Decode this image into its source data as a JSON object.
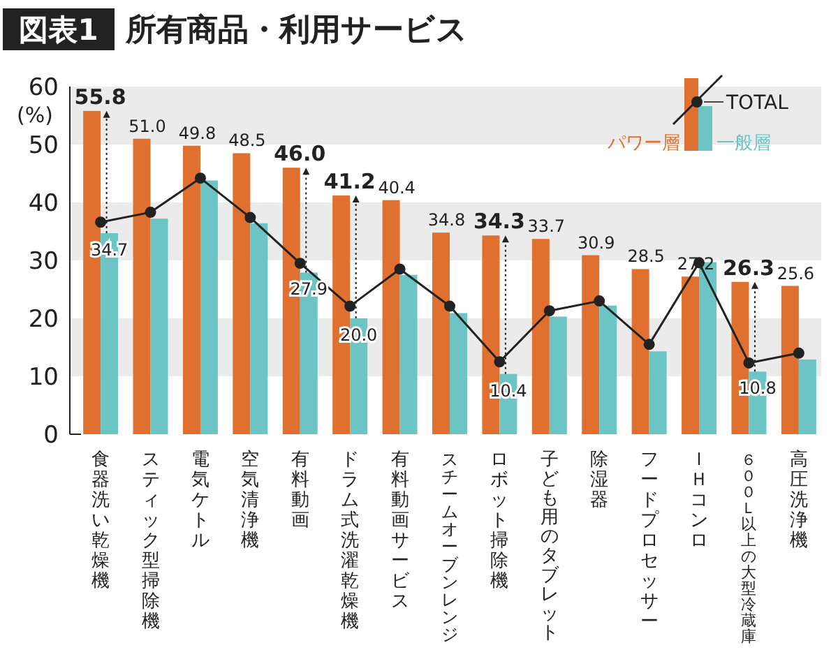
{
  "chart_data": {
    "type": "bar",
    "title": "所有商品・利用サービス",
    "annotations": [
      "図表1"
    ],
    "ylabel": "(%)",
    "categories": [
      "食器洗い乾燥機",
      "スティック型掃除機",
      "電気ケトル",
      "空気清浄機",
      "有料動画",
      "ドラム式洗濯乾燥機",
      "有料動画サービス",
      "スチームオーブンレンジ",
      "ロボット掃除機",
      "子ども用のタブレット",
      "除湿器",
      "フードプロセッサー",
      "ＩＨコンロ",
      "６００Ｌ以上の大型冷蔵庫",
      "高圧洗浄機"
    ],
    "series": [
      {
        "name": "パワー層",
        "color": "#e07030",
        "values": [
          55.8,
          51.0,
          49.8,
          48.5,
          46.0,
          41.2,
          40.4,
          34.8,
          34.3,
          33.7,
          30.9,
          28.5,
          27.2,
          26.3,
          25.6
        ],
        "value_labels": [
          "55.8",
          "51.0",
          "49.8",
          "48.5",
          "46.0",
          "41.2",
          "40.4",
          "34.8",
          "34.3",
          "33.7",
          "30.9",
          "28.5",
          "27.2",
          "26.3",
          "25.6"
        ]
      },
      {
        "name": "一般層",
        "color": "#6cc4c4",
        "values": [
          34.7,
          37.2,
          43.8,
          36.4,
          27.9,
          20.0,
          27.5,
          20.9,
          10.4,
          20.3,
          22.2,
          14.3,
          29.7,
          10.8,
          12.9
        ],
        "value_labels": [
          "34.7",
          null,
          null,
          null,
          "27.9",
          "20.0",
          null,
          null,
          "10.4",
          null,
          null,
          null,
          null,
          "10.8",
          null
        ]
      },
      {
        "name": "TOTAL",
        "type": "line",
        "color": "#222222",
        "marker": "circle",
        "line_style": "solid",
        "values": [
          36.6,
          38.3,
          44.2,
          37.4,
          29.5,
          22.1,
          28.5,
          22.1,
          12.5,
          21.3,
          23.0,
          15.5,
          29.6,
          12.3,
          14.0
        ]
      }
    ],
    "ylim": [
      0,
      60
    ],
    "yticks": [
      0,
      10,
      20,
      30,
      40,
      50,
      60
    ],
    "grid": false,
    "legend": "top right",
    "bands": [
      {
        "axis": "y",
        "from": 10,
        "to": 20,
        "color": "#ebebeb"
      },
      {
        "axis": "y",
        "from": 30,
        "to": 40,
        "color": "#ebebeb"
      },
      {
        "axis": "y",
        "from": 50,
        "to": 60,
        "color": "#ebebeb"
      }
    ]
  }
}
